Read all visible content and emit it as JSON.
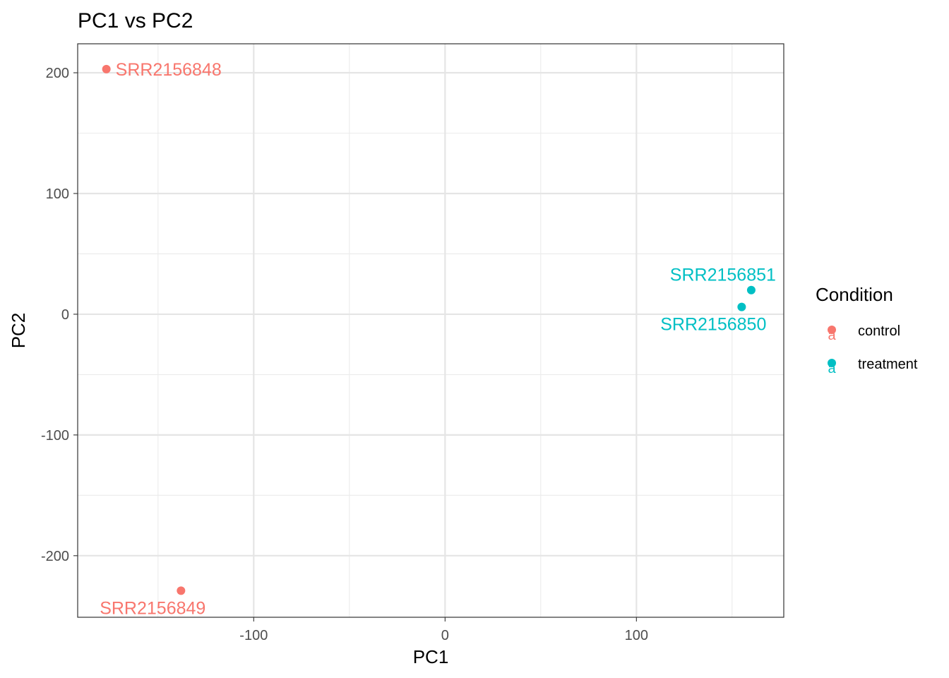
{
  "chart_data": {
    "type": "scatter",
    "title": "PC1 vs PC2",
    "xlabel": "PC1",
    "ylabel": "PC2",
    "xlim": [
      -192,
      177
    ],
    "ylim": [
      -251,
      224
    ],
    "x_ticks": [
      -100,
      0,
      100
    ],
    "y_ticks": [
      -200,
      -100,
      0,
      100,
      200
    ],
    "x_minor": [
      -150,
      -50,
      50,
      150
    ],
    "y_minor": [
      -150,
      -50,
      50,
      150
    ],
    "grid": true,
    "legend": {
      "title": "Condition",
      "placement": "right",
      "entries": [
        {
          "label": "control",
          "color": "#F8766D"
        },
        {
          "label": "treatment",
          "color": "#00BFC4"
        }
      ]
    },
    "points": [
      {
        "label": "SRR2156848",
        "group": "control",
        "x": -177,
        "y": 203,
        "label_pos": "right"
      },
      {
        "label": "SRR2156849",
        "group": "control",
        "x": -138,
        "y": -229,
        "label_pos": "below-left"
      },
      {
        "label": "SRR2156851",
        "group": "treatment",
        "x": 160,
        "y": 20,
        "label_pos": "above-left"
      },
      {
        "label": "SRR2156850",
        "group": "treatment",
        "x": 155,
        "y": 6,
        "label_pos": "below-left"
      }
    ],
    "legend_glyph": "a"
  }
}
